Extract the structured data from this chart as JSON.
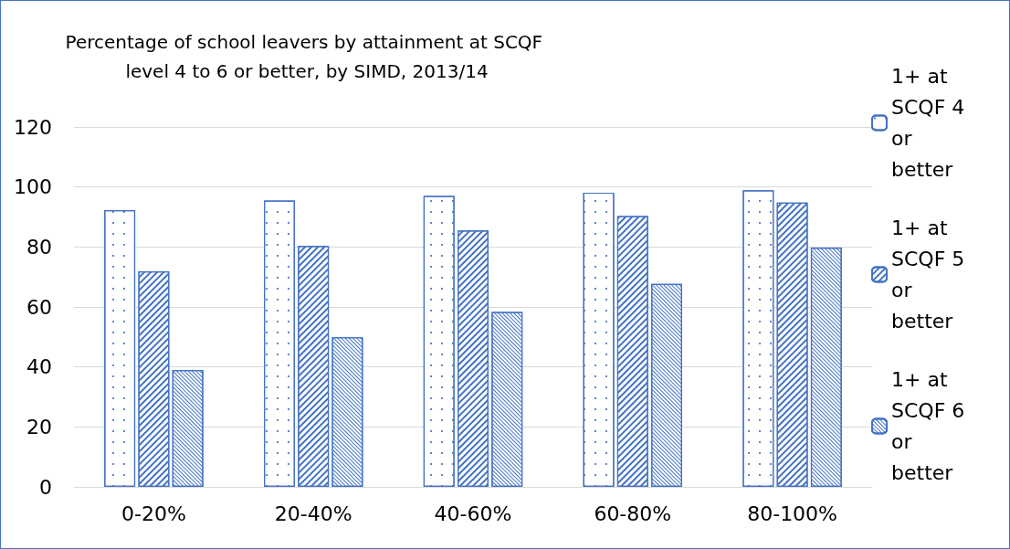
{
  "chart_data": {
    "type": "bar",
    "title": "Percentage of school leavers by attainment at SCQF level 4 to 6 or better, by SIMD, 2013/14",
    "categories": [
      "0-20%",
      "20-40%",
      "40-60%",
      "60-80%",
      "80-100%"
    ],
    "series": [
      {
        "name": "1+ at SCQF 4 or better",
        "color": "#4472c4",
        "values": [
          92.3,
          95.5,
          97,
          98.1,
          98.9
        ]
      },
      {
        "name": "1+ at SCQF 5 or better",
        "color": "#4472c4",
        "values": [
          71.9,
          80.3,
          85.5,
          90.3,
          94.8
        ]
      },
      {
        "name": "1+ at SCQF 6 or better",
        "color": "#4472c4",
        "values": [
          39,
          49.9,
          58.3,
          67.7,
          79.8
        ]
      }
    ],
    "ylim": [
      0,
      120
    ],
    "yticks": [
      0,
      20,
      40,
      60,
      80,
      100,
      120
    ],
    "grid": "y",
    "legend": "right"
  }
}
